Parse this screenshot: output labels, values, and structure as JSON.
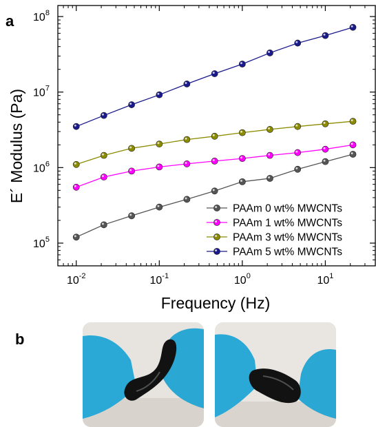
{
  "panel_a_label": "a",
  "panel_b_label": "b",
  "chart_data": {
    "type": "line",
    "xscale": "log",
    "yscale": "log",
    "xlabel": "Frequency (Hz)",
    "ylabel": "E´ Modulus (Pa)",
    "xlim": [
      0.006,
      40
    ],
    "ylim": [
      50000,
      140000000
    ],
    "x_ticks": [
      {
        "value": 0.01,
        "base": "10",
        "exp": "-2"
      },
      {
        "value": 0.1,
        "base": "10",
        "exp": "-1"
      },
      {
        "value": 1,
        "base": "10",
        "exp": "0"
      },
      {
        "value": 10,
        "base": "10",
        "exp": "1"
      }
    ],
    "y_ticks": [
      {
        "value": 100000,
        "base": "10",
        "exp": "5"
      },
      {
        "value": 1000000,
        "base": "10",
        "exp": "6"
      },
      {
        "value": 10000000,
        "base": "10",
        "exp": "7"
      },
      {
        "value": 100000000,
        "base": "10",
        "exp": "8"
      }
    ],
    "x": [
      0.01,
      0.0215,
      0.0464,
      0.1,
      0.215,
      0.464,
      1,
      2.15,
      4.64,
      10,
      21.5
    ],
    "legend_position": "lower-right",
    "series": [
      {
        "name": "PAAm 0 wt% MWCNTs",
        "color": "#555555",
        "values": [
          120000,
          175000,
          230000,
          300000,
          380000,
          490000,
          650000,
          720000,
          950000,
          1200000,
          1500000
        ]
      },
      {
        "name": "PAAm 1 wt% MWCNTs",
        "color": "#ff00ff",
        "values": [
          550000,
          750000,
          900000,
          1020000,
          1120000,
          1220000,
          1320000,
          1450000,
          1580000,
          1750000,
          2000000
        ]
      },
      {
        "name": "PAAm 3 wt% MWCNTs",
        "color": "#8b8b00",
        "values": [
          1100000,
          1450000,
          1800000,
          2050000,
          2350000,
          2600000,
          2900000,
          3200000,
          3500000,
          3800000,
          4100000
        ]
      },
      {
        "name": "PAAm 5 wt% MWCNTs",
        "color": "#1a1a8c",
        "values": [
          3500000,
          4900000,
          6800000,
          9200000,
          12800000,
          17500000,
          23500000,
          33000000,
          44500000,
          56000000,
          72000000
        ]
      }
    ]
  }
}
